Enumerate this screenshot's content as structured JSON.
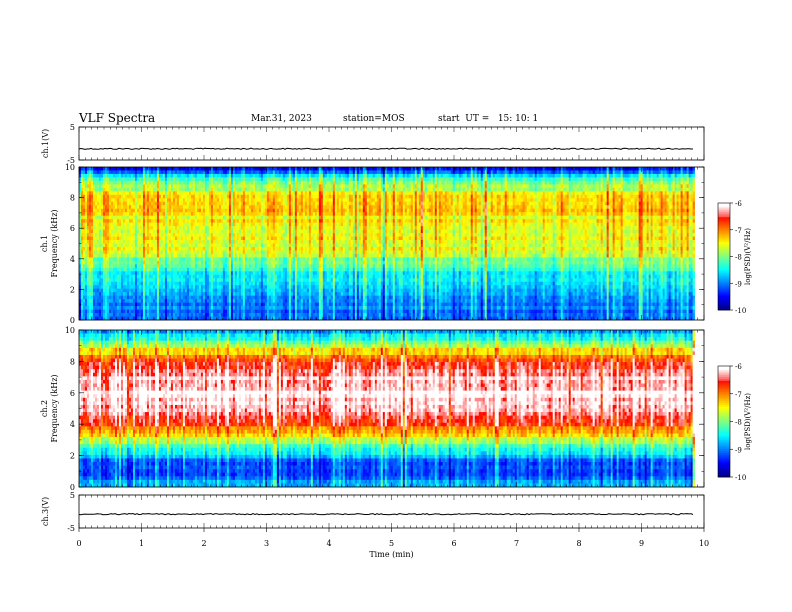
{
  "header": {
    "title": "VLF Spectra",
    "date": "Mar.31, 2023",
    "station": "station=MOS",
    "start": "start  UT =   15: 10: 1"
  },
  "chart_data": [
    {
      "type": "line",
      "ylabel": "ch.1(V)",
      "ylim": [
        -5,
        5
      ],
      "ytick_labels": [
        "5",
        "-5"
      ],
      "series": [
        {
          "x": [
            0,
            9.85
          ],
          "values": [
            -1.6,
            -1.6
          ]
        }
      ],
      "xlim": [
        0,
        10
      ]
    },
    {
      "type": "heatmap",
      "ylabel": "ch.1\nFrequency (kHz)",
      "ylim": [
        0,
        10
      ],
      "ytick_labels": [
        "0",
        "2",
        "4",
        "6",
        "8",
        "10"
      ],
      "xlim": [
        0,
        10
      ],
      "x_extent": [
        0,
        9.85
      ],
      "colorbar": {
        "label": "log(PSD)(V²/Hz)",
        "range": [
          -10,
          -6
        ],
        "tick_labels": [
          "-6",
          "-7",
          "-8",
          "-9",
          "-10"
        ]
      },
      "profile": [
        -9.2,
        -9.0,
        -8.8,
        -8.6,
        -8.2,
        -7.6,
        -7.6,
        -7.5,
        -7.3,
        -7.4,
        -8.2,
        -9.6
      ]
    },
    {
      "type": "heatmap",
      "ylabel": "ch.2\nFrequency (kHz)",
      "ylim": [
        0,
        10
      ],
      "ytick_labels": [
        "0",
        "2",
        "4",
        "6",
        "8",
        "10"
      ],
      "xlim": [
        0,
        10
      ],
      "x_extent": [
        0,
        9.85
      ],
      "colorbar": {
        "label": "log(PSD)(V²/Hz)",
        "range": [
          -10,
          -6
        ],
        "tick_labels": [
          "-6",
          "-7",
          "-8",
          "-9",
          "-10"
        ]
      },
      "profile": [
        -8.6,
        -9.2,
        -9.0,
        -8.0,
        -7.0,
        -6.3,
        -6.1,
        -6.1,
        -6.3,
        -6.8,
        -7.9,
        -8.9
      ]
    },
    {
      "type": "line",
      "ylabel": "ch.3(V)",
      "ylim": [
        -5,
        5
      ],
      "ytick_labels": [
        "5",
        "-5"
      ],
      "series": [
        {
          "x": [
            0,
            9.85
          ],
          "values": [
            -0.8,
            -0.8
          ]
        }
      ],
      "xlim": [
        0,
        10
      ],
      "xlabel": "Time  (min)",
      "xtick_labels": [
        "0",
        "1",
        "2",
        "3",
        "4",
        "5",
        "6",
        "7",
        "8",
        "9",
        "10"
      ]
    }
  ]
}
